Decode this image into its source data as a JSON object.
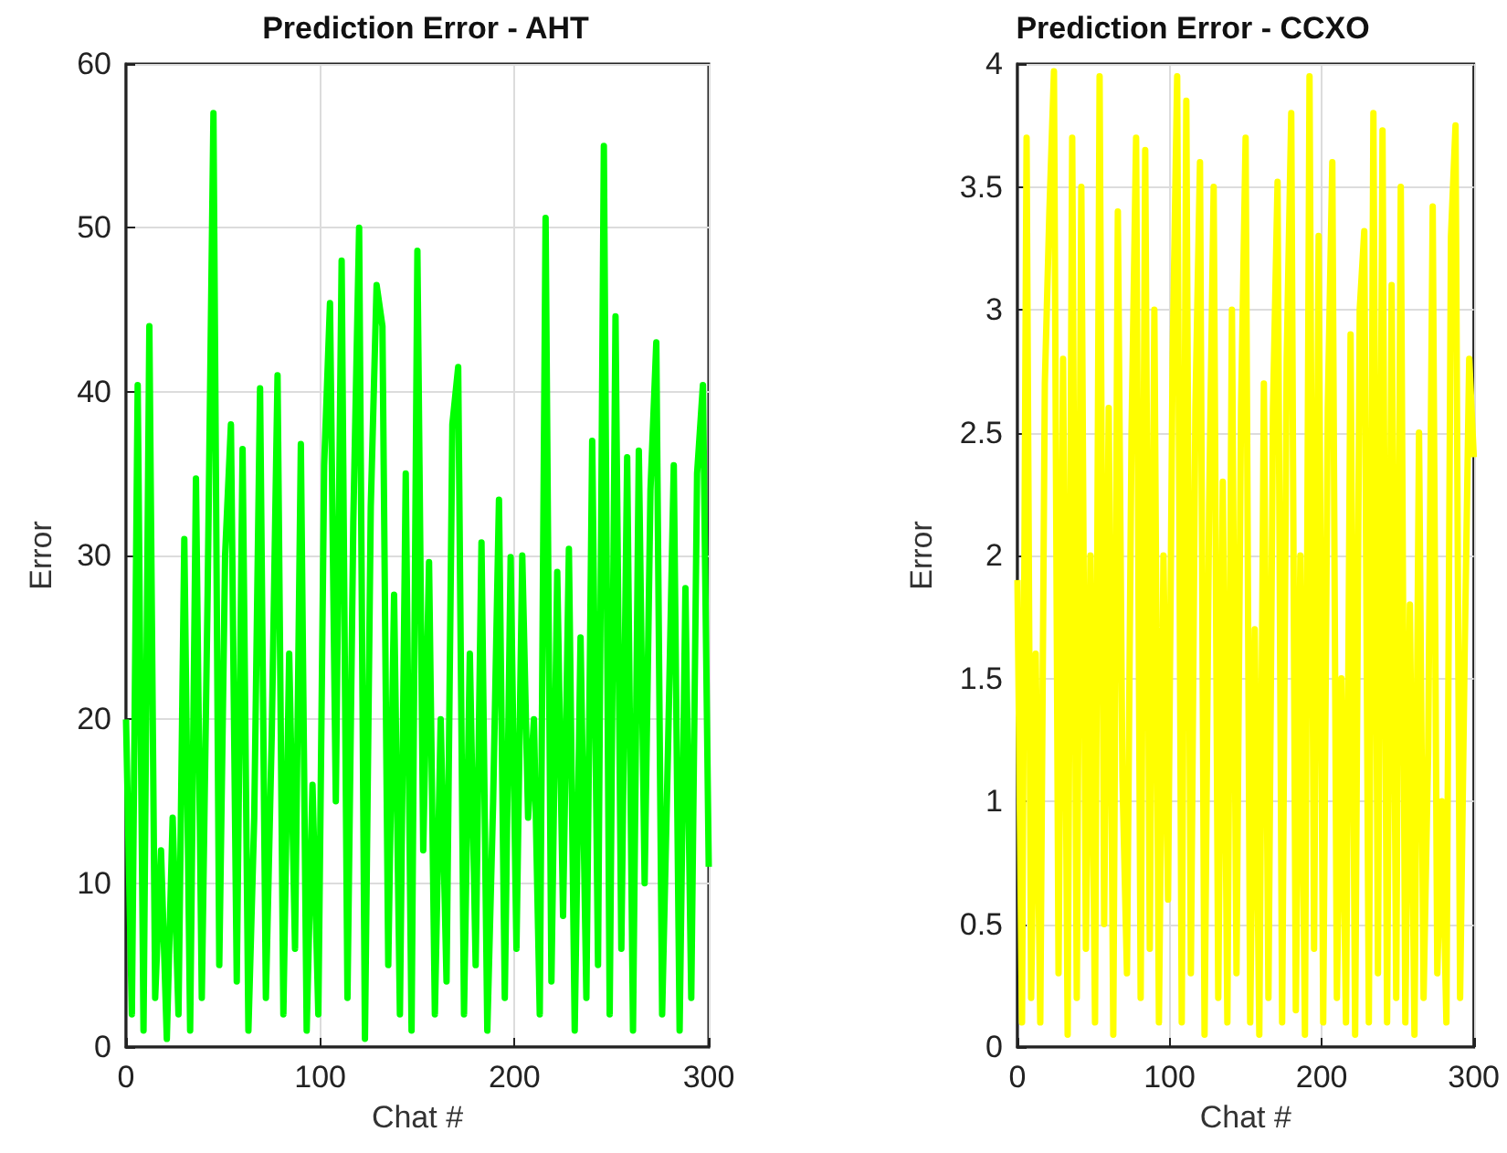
{
  "chart_data": [
    {
      "type": "line",
      "title": "Prediction Error - AHT",
      "xlabel": "Chat #",
      "ylabel": "Error",
      "grid": true,
      "xlim": [
        0,
        300
      ],
      "xticks": [
        0,
        100,
        200,
        300
      ],
      "ylim": [
        0,
        60
      ],
      "yticks": [
        0,
        10,
        20,
        30,
        40,
        50,
        60
      ],
      "x": [
        0,
        3,
        6,
        9,
        12,
        15,
        18,
        21,
        24,
        27,
        30,
        33,
        36,
        39,
        42,
        45,
        48,
        51,
        54,
        57,
        60,
        63,
        66,
        69,
        72,
        75,
        78,
        81,
        84,
        87,
        90,
        93,
        96,
        99,
        102,
        105,
        108,
        111,
        114,
        117,
        120,
        123,
        126,
        129,
        132,
        135,
        138,
        141,
        144,
        147,
        150,
        153,
        156,
        159,
        162,
        165,
        168,
        171,
        174,
        177,
        180,
        183,
        186,
        189,
        192,
        195,
        198,
        201,
        204,
        207,
        210,
        213,
        216,
        219,
        222,
        225,
        228,
        231,
        234,
        237,
        240,
        243,
        246,
        249,
        252,
        255,
        258,
        261,
        264,
        267,
        270,
        273,
        276,
        279,
        282,
        285,
        288,
        291,
        294,
        297,
        300
      ],
      "series": [
        {
          "color": "#00ff00",
          "values": [
            20,
            2,
            40.4,
            1,
            44,
            3,
            12,
            0.5,
            14,
            2,
            31,
            1,
            34.7,
            3,
            27.6,
            57,
            5,
            30,
            38,
            4,
            36.5,
            1,
            14,
            40.2,
            3,
            19,
            41,
            2,
            24,
            6,
            36.8,
            1,
            16,
            2,
            35.5,
            45.4,
            15,
            48,
            3,
            32,
            50,
            0.5,
            33,
            46.5,
            44,
            5,
            27.6,
            2,
            35,
            1,
            48.6,
            12,
            29.6,
            2,
            20,
            4,
            38,
            41.5,
            2,
            24,
            5,
            30.8,
            1,
            15,
            33.4,
            3,
            29.9,
            6,
            30,
            14,
            20,
            2,
            50.6,
            4,
            29,
            8,
            30.4,
            1,
            25,
            3,
            37,
            5,
            55,
            2,
            44.6,
            6,
            36,
            1,
            36.4,
            10,
            34,
            43,
            2,
            18,
            35.5,
            1,
            28,
            3,
            35,
            40.4,
            11
          ]
        }
      ]
    },
    {
      "type": "line",
      "title": "Prediction Error - CCXO",
      "xlabel": "Chat #",
      "ylabel": "Error",
      "grid": true,
      "xlim": [
        0,
        300
      ],
      "xticks": [
        0,
        100,
        200,
        300
      ],
      "ylim": [
        0,
        4
      ],
      "yticks": [
        0,
        0.5,
        1,
        1.5,
        2,
        2.5,
        3,
        3.5,
        4
      ],
      "x": [
        0,
        3,
        6,
        9,
        12,
        15,
        18,
        21,
        24,
        27,
        30,
        33,
        36,
        39,
        42,
        45,
        48,
        51,
        54,
        57,
        60,
        63,
        66,
        69,
        72,
        75,
        78,
        81,
        84,
        87,
        90,
        93,
        96,
        99,
        102,
        105,
        108,
        111,
        114,
        117,
        120,
        123,
        126,
        129,
        132,
        135,
        138,
        141,
        144,
        147,
        150,
        153,
        156,
        159,
        162,
        165,
        168,
        171,
        174,
        177,
        180,
        183,
        186,
        189,
        192,
        195,
        198,
        201,
        204,
        207,
        210,
        213,
        216,
        219,
        222,
        225,
        228,
        231,
        234,
        237,
        240,
        243,
        246,
        249,
        252,
        255,
        258,
        261,
        264,
        267,
        270,
        273,
        276,
        279,
        282,
        285,
        288,
        291,
        294,
        297,
        300
      ],
      "series": [
        {
          "color": "#ffff00",
          "values": [
            1.9,
            0.1,
            3.7,
            0.2,
            1.6,
            0.1,
            2.7,
            3.4,
            3.97,
            0.3,
            2.8,
            0.05,
            3.7,
            0.2,
            3.5,
            0.4,
            2.0,
            0.1,
            3.95,
            0.5,
            2.6,
            0.05,
            3.4,
            1.1,
            0.3,
            2.5,
            3.7,
            0.2,
            3.65,
            0.4,
            3.0,
            0.1,
            2.0,
            0.6,
            2.8,
            3.95,
            0.1,
            3.85,
            0.3,
            2.6,
            3.6,
            0.05,
            2.2,
            3.5,
            0.2,
            2.3,
            0.1,
            3.0,
            0.3,
            2.6,
            3.7,
            0.1,
            1.7,
            0.05,
            2.7,
            0.2,
            2.6,
            3.52,
            0.1,
            2.8,
            3.8,
            0.15,
            2.0,
            0.05,
            3.95,
            0.4,
            3.3,
            0.1,
            2.6,
            3.6,
            0.2,
            1.5,
            0.1,
            2.9,
            0.05,
            3.0,
            3.32,
            0.1,
            3.8,
            0.3,
            3.73,
            0.1,
            3.1,
            0.2,
            3.5,
            0.1,
            1.8,
            0.05,
            2.5,
            0.2,
            1.2,
            3.42,
            0.3,
            1.0,
            0.1,
            3.3,
            3.75,
            0.2,
            1.6,
            2.8,
            2.4
          ]
        }
      ]
    }
  ]
}
